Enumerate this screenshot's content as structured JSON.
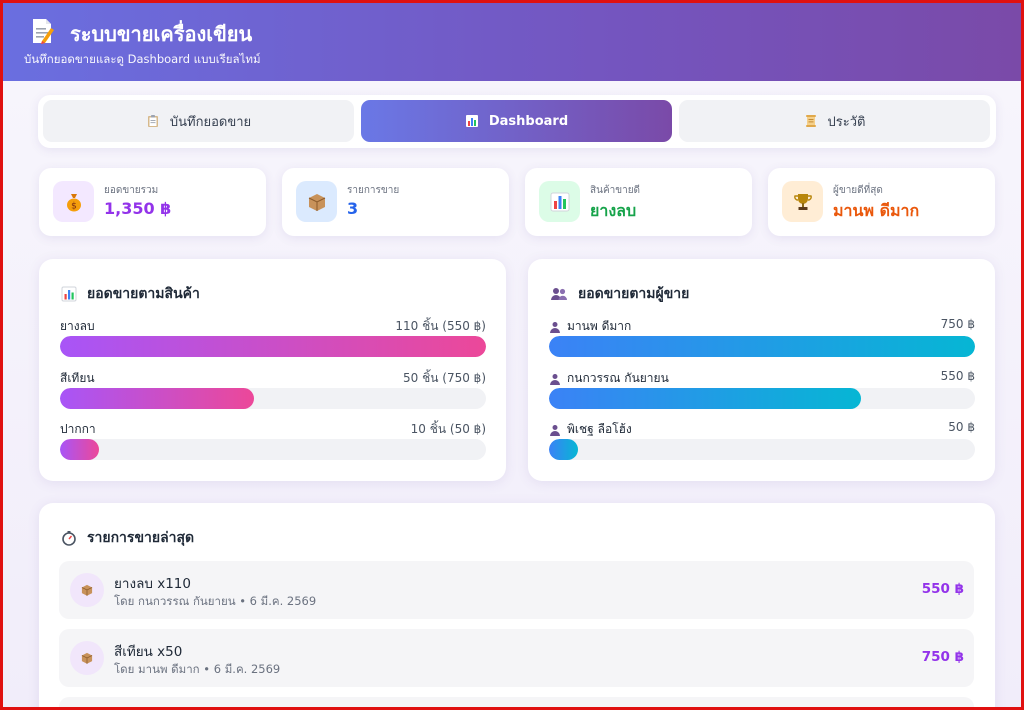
{
  "header": {
    "title": "ระบบขายเครื่องเขียน",
    "subtitle": "บันทึกยอดขายและดู Dashboard แบบเรียลไทม์",
    "logo_icon": "memo-icon"
  },
  "tabs": [
    {
      "label": "บันทึกยอดขาย",
      "icon": "clipboard-icon",
      "active": false
    },
    {
      "label": "Dashboard",
      "icon": "chart-icon",
      "active": true
    },
    {
      "label": "ประวัติ",
      "icon": "scroll-icon",
      "active": false
    }
  ],
  "stats": [
    {
      "label": "ยอดขายรวม",
      "value": "1,350 ฿",
      "icon": "money-bag-icon",
      "color": "#9333ea",
      "bg": "#f3e8ff"
    },
    {
      "label": "รายการขาย",
      "value": "3",
      "icon": "package-icon",
      "color": "#2563eb",
      "bg": "#dbeafe"
    },
    {
      "label": "สินค้าขายดี",
      "value": "ยางลบ",
      "icon": "bar-chart-icon",
      "color": "#16a34a",
      "bg": "#dcfce7"
    },
    {
      "label": "ผู้ขายดีที่สุด",
      "value": "มานพ ดีมาก",
      "icon": "trophy-icon",
      "color": "#ea580c",
      "bg": "#ffedd5"
    }
  ],
  "by_product": {
    "title": "ยอดขายตามสินค้า",
    "icon": "bar-chart-icon",
    "items": [
      {
        "name": "ยางลบ",
        "amount": "110 ชิ้น (550 ฿)",
        "fill": 1.0
      },
      {
        "name": "สีเทียน",
        "amount": "50 ชิ้น (750 ฿)",
        "fill": 0.455
      },
      {
        "name": "ปากกา",
        "amount": "10 ชิ้น (50 ฿)",
        "fill": 0.091
      }
    ]
  },
  "by_seller": {
    "title": "ยอดขายตามผู้ขาย",
    "icon": "users-icon",
    "items": [
      {
        "name": "มานพ ดีมาก",
        "amount": "750 ฿",
        "fill": 1.0
      },
      {
        "name": "กนกวรรณ กันยายน",
        "amount": "550 ฿",
        "fill": 0.733
      },
      {
        "name": "พิเชฐ ลือโฮ้ง",
        "amount": "50 ฿",
        "fill": 0.067
      }
    ]
  },
  "recent": {
    "title": "รายการขายล่าสุด",
    "icon": "stopwatch-icon",
    "items": [
      {
        "item": "ยางลบ x110",
        "sub": "โดย กนกวรรณ กันยายน • 6 มี.ค. 2569",
        "price": "550 ฿"
      },
      {
        "item": "สีเทียน x50",
        "sub": "โดย มานพ ดีมาก • 6 มี.ค. 2569",
        "price": "750 ฿"
      }
    ]
  }
}
